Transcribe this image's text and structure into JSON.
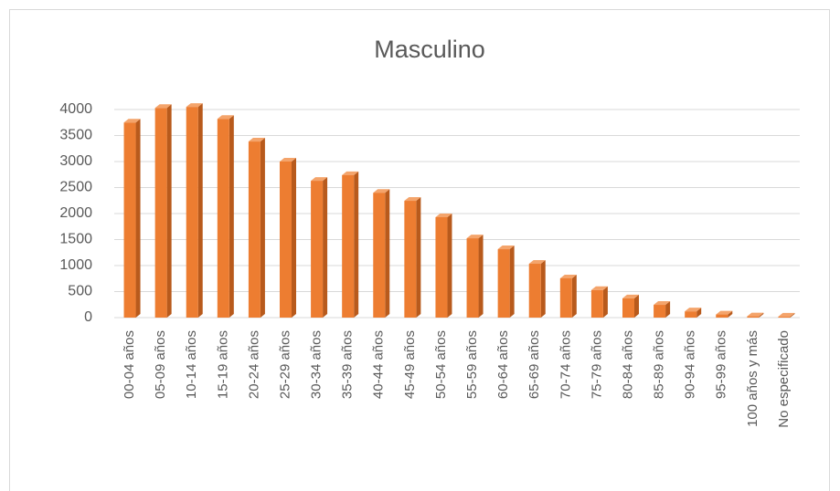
{
  "chart_data": {
    "type": "bar",
    "title": "Masculino",
    "categories": [
      "00-04 años",
      "05-09 años",
      "10-14 años",
      "15-19 años",
      "20-24 años",
      "25-29 años",
      "30-34 años",
      "35-39 años",
      "40-44 años",
      "45-49 años",
      "50-54 años",
      "55-59 años",
      "60-64 años",
      "65-69 años",
      "70-74 años",
      "75-79 años",
      "80-84 años",
      "85-89 años",
      "90-94 años",
      "95-99 años",
      "100 años y más",
      "No especificado"
    ],
    "values": [
      3750,
      4030,
      4050,
      3820,
      3385,
      3000,
      2630,
      2740,
      2400,
      2245,
      1930,
      1525,
      1315,
      1035,
      755,
      530,
      370,
      245,
      120,
      60,
      25,
      20
    ],
    "color": "#ed7d31",
    "ylim": [
      0,
      4000
    ],
    "yticks": [
      0,
      500,
      1000,
      1500,
      2000,
      2500,
      3000,
      3500,
      4000
    ],
    "grid": true
  }
}
